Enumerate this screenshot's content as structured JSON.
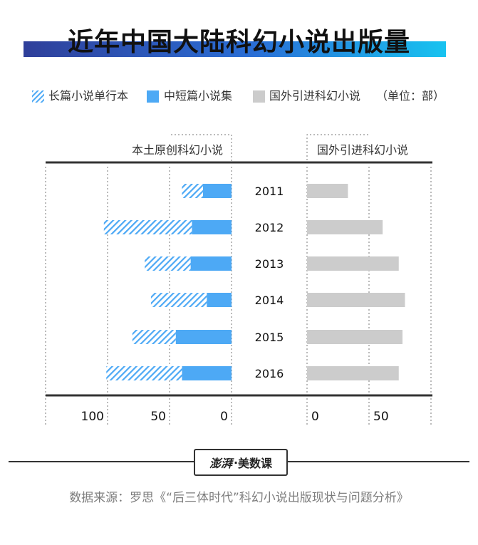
{
  "title": "近年中国大陆科幻小说出版量",
  "legend": {
    "items": [
      {
        "label": "长篇小说单行本",
        "color": "#4da9f5",
        "pattern": "hatched"
      },
      {
        "label": "中短篇小说集",
        "color": "#4da9f5",
        "pattern": "solid"
      },
      {
        "label": "国外引进科幻小说",
        "color": "#cccccc",
        "pattern": "solid"
      }
    ],
    "unit": "（单位：部）"
  },
  "logo": {
    "text_a": "澎湃",
    "separator": "·",
    "text_b": "美数课"
  },
  "source": "数据来源：罗思《“后三体时代”科幻小说出版现状与问题分析》",
  "chart_data": {
    "type": "bar",
    "orientation": "horizontal",
    "categories": [
      "2011",
      "2012",
      "2013",
      "2014",
      "2015",
      "2016"
    ],
    "panels": [
      {
        "title": "本土原创科幻小说",
        "direction": "left",
        "xlim": [
          0,
          150
        ],
        "ticks": [
          100,
          50,
          0
        ],
        "stacked": true,
        "series": [
          {
            "name": "中短篇小说集",
            "color": "#4da9f5",
            "pattern": "solid",
            "values": [
              23,
              32,
              33,
              20,
              45,
              40
            ]
          },
          {
            "name": "长篇小说单行本",
            "color": "#4da9f5",
            "pattern": "hatched",
            "values": [
              17,
              71,
              37,
              45,
              35,
              61
            ]
          }
        ]
      },
      {
        "title": "国外引进科幻小说",
        "direction": "right",
        "xlim": [
          0,
          100
        ],
        "ticks": [
          0,
          50
        ],
        "series": [
          {
            "name": "国外引进科幻小说",
            "color": "#cccccc",
            "pattern": "solid",
            "values": [
              33,
              61,
              74,
              79,
              77,
              74
            ]
          }
        ]
      }
    ]
  }
}
